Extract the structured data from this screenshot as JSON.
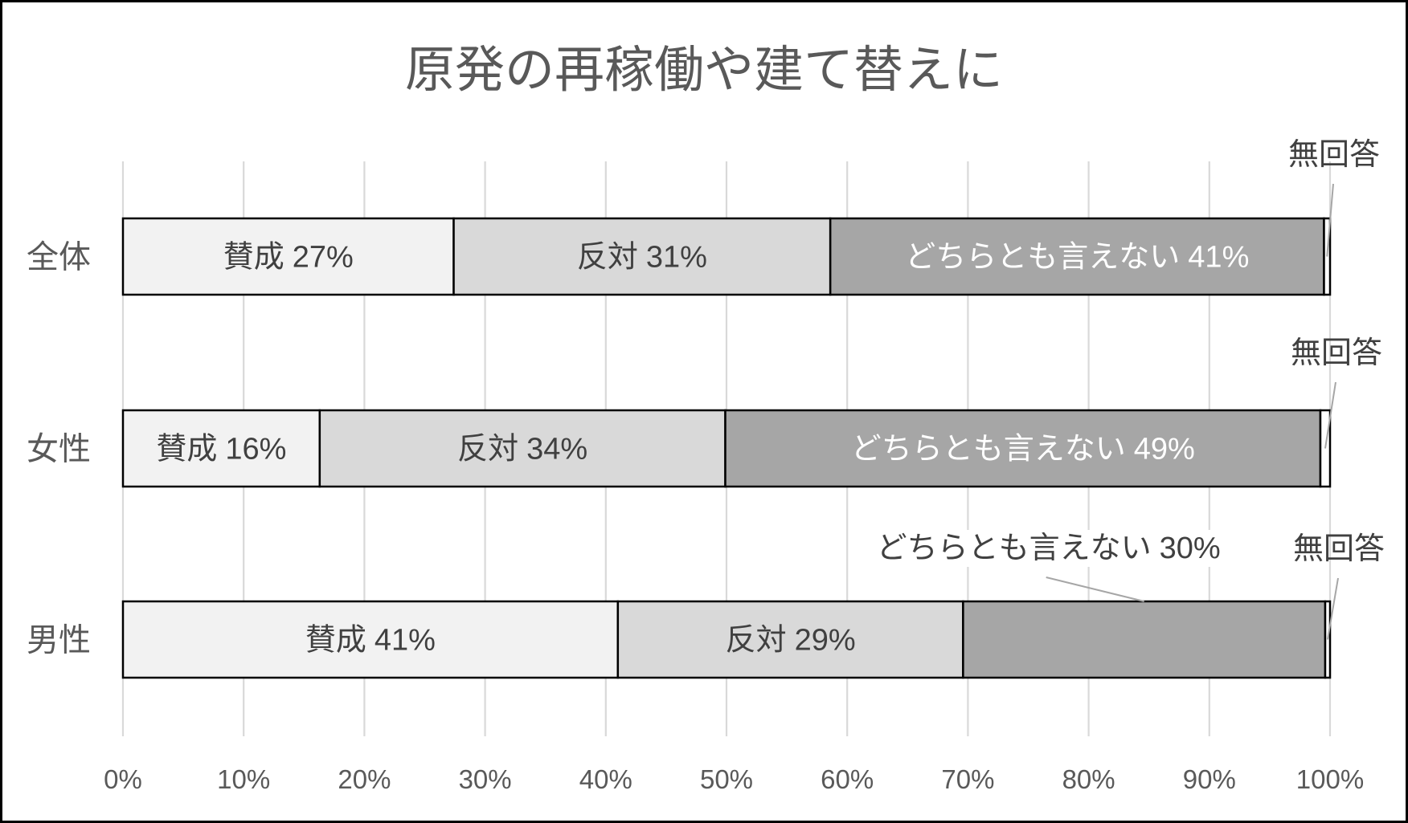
{
  "chart_data": {
    "type": "bar",
    "orientation": "horizontal",
    "stacking": "percent",
    "title": "原発の再稼働や建て替えに",
    "categories": [
      "全体",
      "女性",
      "男性"
    ],
    "xlim": [
      0,
      100
    ],
    "xticks": [
      "0%",
      "10%",
      "20%",
      "30%",
      "40%",
      "50%",
      "60%",
      "70%",
      "80%",
      "90%",
      "100%"
    ],
    "grid": "vertical",
    "legend": "none",
    "series": [
      {
        "name": "賛成",
        "values": [
          27.4,
          16.3,
          41.0
        ],
        "labels": [
          "27%",
          "16%",
          "41%"
        ],
        "color": "#f2f2f2",
        "label_color": "#404040"
      },
      {
        "name": "反対",
        "values": [
          31.2,
          33.6,
          28.6
        ],
        "labels": [
          "31%",
          "34%",
          "29%"
        ],
        "color": "#d9d9d9",
        "label_color": "#404040"
      },
      {
        "name": "どちらとも言えない",
        "values": [
          40.9,
          49.3,
          30.0
        ],
        "labels": [
          "41%",
          "49%",
          "30%"
        ],
        "color": "#a6a6a6",
        "label_color": "#ffffff"
      },
      {
        "name": "無回答",
        "values": [
          0.5,
          0.8,
          0.4
        ],
        "color": "#ffffff",
        "label_color": "#404040"
      }
    ]
  }
}
